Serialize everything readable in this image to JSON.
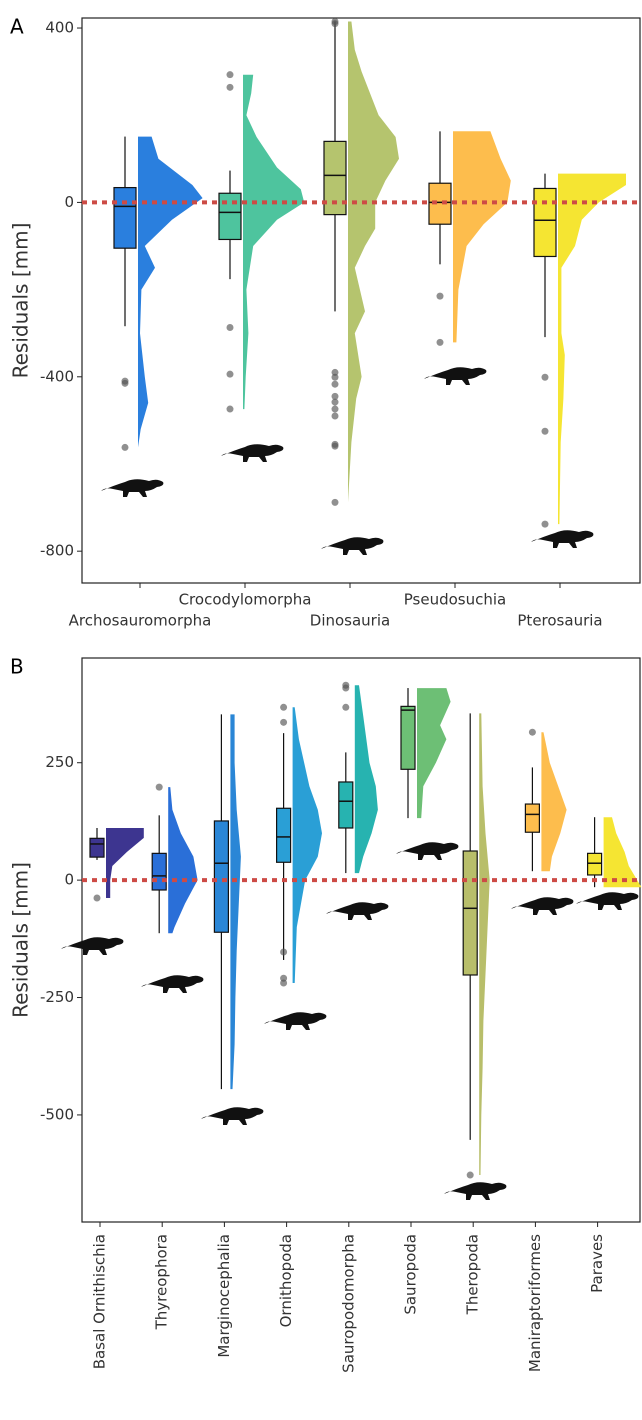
{
  "chart_data": [
    {
      "type": "raincloud",
      "panel": "A",
      "y_label": "Residuals [mm]",
      "ylim": [
        -873,
        423
      ],
      "yticks": [
        -800,
        -400,
        0,
        400
      ],
      "ref_line": 0,
      "ref_color": "#cd4b45",
      "categories": [
        "Archosauromorpha",
        "Crocodylomorpha",
        "Dinosauria",
        "Pseudosuchia",
        "Pterosauria"
      ],
      "groups": [
        {
          "color": "#2a7fde",
          "box": [
            -284,
            -105,
            -9,
            34,
            151
          ],
          "outliers": [
            -410,
            -415,
            -562
          ],
          "density_y": [
            151,
            100,
            40,
            10,
            -40,
            -100,
            -150,
            -200,
            -300,
            -400,
            -460,
            -520,
            -562
          ],
          "density": [
            0.2,
            0.3,
            0.8,
            0.95,
            0.5,
            0.1,
            0.25,
            0.05,
            0.03,
            0.1,
            0.15,
            0.04,
            0
          ]
        },
        {
          "color": "#4ec49e",
          "box": [
            -176,
            -85,
            -23,
            21,
            73
          ],
          "outliers": [
            293,
            264,
            -287,
            -394,
            -474
          ],
          "density_y": [
            293,
            250,
            200,
            150,
            80,
            30,
            0,
            -40,
            -100,
            -200,
            -300,
            -400,
            -474
          ],
          "density": [
            0.15,
            0.12,
            0.05,
            0.2,
            0.5,
            0.85,
            0.9,
            0.5,
            0.15,
            0.05,
            0.08,
            0.04,
            0.02
          ]
        },
        {
          "color": "#b5c46e",
          "box": [
            -250,
            -28,
            62,
            140,
            415
          ],
          "outliers": [
            415,
            410,
            -390,
            -401,
            -417,
            -445,
            -458,
            -474,
            -490,
            -555,
            -559,
            -688
          ],
          "density_y": [
            415,
            350,
            300,
            200,
            150,
            100,
            50,
            0,
            -60,
            -100,
            -150,
            -250,
            -300,
            -400,
            -450,
            -550,
            -688
          ],
          "density": [
            0.05,
            0.1,
            0.2,
            0.45,
            0.7,
            0.75,
            0.55,
            0.4,
            0.4,
            0.25,
            0.1,
            0.25,
            0.1,
            0.2,
            0.12,
            0.05,
            0
          ]
        },
        {
          "color": "#fdbd4d",
          "box": [
            -142,
            -50,
            0,
            44,
            163
          ],
          "outliers": [
            -215,
            -321
          ],
          "density_y": [
            163,
            100,
            50,
            0,
            -50,
            -100,
            -200,
            -321
          ],
          "density": [
            0.55,
            0.7,
            0.85,
            0.8,
            0.45,
            0.2,
            0.08,
            0.05
          ]
        },
        {
          "color": "#f5e532",
          "box": [
            -309,
            -124,
            -41,
            32,
            66
          ],
          "outliers": [
            -401,
            -525,
            -738
          ],
          "density_y": [
            66,
            40,
            0,
            -40,
            -100,
            -150,
            -300,
            -350,
            -450,
            -550,
            -738
          ],
          "density": [
            1,
            1,
            0.6,
            0.35,
            0.25,
            0.05,
            0.05,
            0.1,
            0.08,
            0.04,
            0.02
          ]
        }
      ]
    },
    {
      "type": "raincloud",
      "panel": "B",
      "y_label": "Residuals [mm]",
      "ylim": [
        -728,
        473
      ],
      "yticks": [
        -500,
        -250,
        0,
        250
      ],
      "ref_line": 0,
      "ref_color": "#cd4b45",
      "categories": [
        "Basal Ornithischia",
        "Thyreophora",
        "Marginocephalia",
        "Ornithopoda",
        "Sauropodomorpha",
        "Sauropoda",
        "Theropoda",
        "Maniraptoriformes",
        "Paraves"
      ],
      "groups": [
        {
          "color": "#3d3590",
          "box": [
            43,
            49,
            77,
            89,
            111
          ],
          "outliers": [
            -38
          ],
          "density_y": [
            111,
            90,
            60,
            30,
            0,
            -38
          ],
          "density": [
            0.9,
            0.9,
            0.5,
            0.15,
            0.1,
            0.1
          ]
        },
        {
          "color": "#2a6fd8",
          "box": [
            -113,
            -21,
            9,
            57,
            138
          ],
          "outliers": [
            198
          ],
          "density_y": [
            198,
            150,
            100,
            50,
            0,
            -50,
            -100,
            -113
          ],
          "density": [
            0.05,
            0.1,
            0.3,
            0.6,
            0.7,
            0.4,
            0.15,
            0.1
          ]
        },
        {
          "color": "#2a86d6",
          "box": [
            -445,
            -111,
            36,
            126,
            353
          ],
          "outliers": [],
          "density_y": [
            353,
            250,
            150,
            50,
            -50,
            -150,
            -250,
            -350,
            -445
          ],
          "density": [
            0.1,
            0.1,
            0.15,
            0.25,
            0.2,
            0.15,
            0.12,
            0.1,
            0.05
          ]
        },
        {
          "color": "#2a9fd6",
          "box": [
            -170,
            38,
            92,
            153,
            313
          ],
          "outliers": [
            368,
            336,
            -153,
            -209,
            -219
          ],
          "density_y": [
            368,
            300,
            200,
            150,
            100,
            50,
            0,
            -100,
            -219
          ],
          "density": [
            0.05,
            0.15,
            0.4,
            0.6,
            0.7,
            0.6,
            0.3,
            0.1,
            0.05
          ]
        },
        {
          "color": "#27b3b0",
          "box": [
            15,
            111,
            168,
            209,
            272
          ],
          "outliers": [
            415,
            409,
            368
          ],
          "density_y": [
            415,
            350,
            250,
            200,
            150,
            100,
            50,
            15
          ],
          "density": [
            0.1,
            0.2,
            0.35,
            0.5,
            0.55,
            0.4,
            0.2,
            0.1
          ]
        },
        {
          "color": "#6dbf75",
          "box": [
            132,
            236,
            362,
            370,
            409
          ],
          "outliers": [],
          "density_y": [
            409,
            380,
            330,
            300,
            250,
            200,
            132
          ],
          "density": [
            0.7,
            0.8,
            0.55,
            0.7,
            0.45,
            0.15,
            0.1
          ]
        },
        {
          "color": "#b8be6a",
          "box": [
            -553,
            -202,
            -60,
            62,
            355
          ],
          "outliers": [
            -628
          ],
          "density_y": [
            355,
            200,
            100,
            0,
            -100,
            -200,
            -300,
            -400,
            -500,
            -628
          ],
          "density": [
            0.05,
            0.08,
            0.15,
            0.25,
            0.2,
            0.15,
            0.1,
            0.08,
            0.05,
            0.03
          ]
        },
        {
          "color": "#fdbd4d",
          "box": [
            19,
            102,
            140,
            162,
            240
          ],
          "outliers": [
            315
          ],
          "density_y": [
            315,
            250,
            200,
            150,
            100,
            50,
            19
          ],
          "density": [
            0.05,
            0.2,
            0.4,
            0.6,
            0.45,
            0.25,
            0.2
          ]
        },
        {
          "color": "#f5e532",
          "box": [
            -15,
            11,
            36,
            57,
            134
          ],
          "outliers": [],
          "density_y": [
            134,
            100,
            60,
            30,
            0,
            -15
          ],
          "density": [
            0.2,
            0.3,
            0.5,
            0.6,
            0.8,
            0.9
          ]
        }
      ]
    }
  ]
}
